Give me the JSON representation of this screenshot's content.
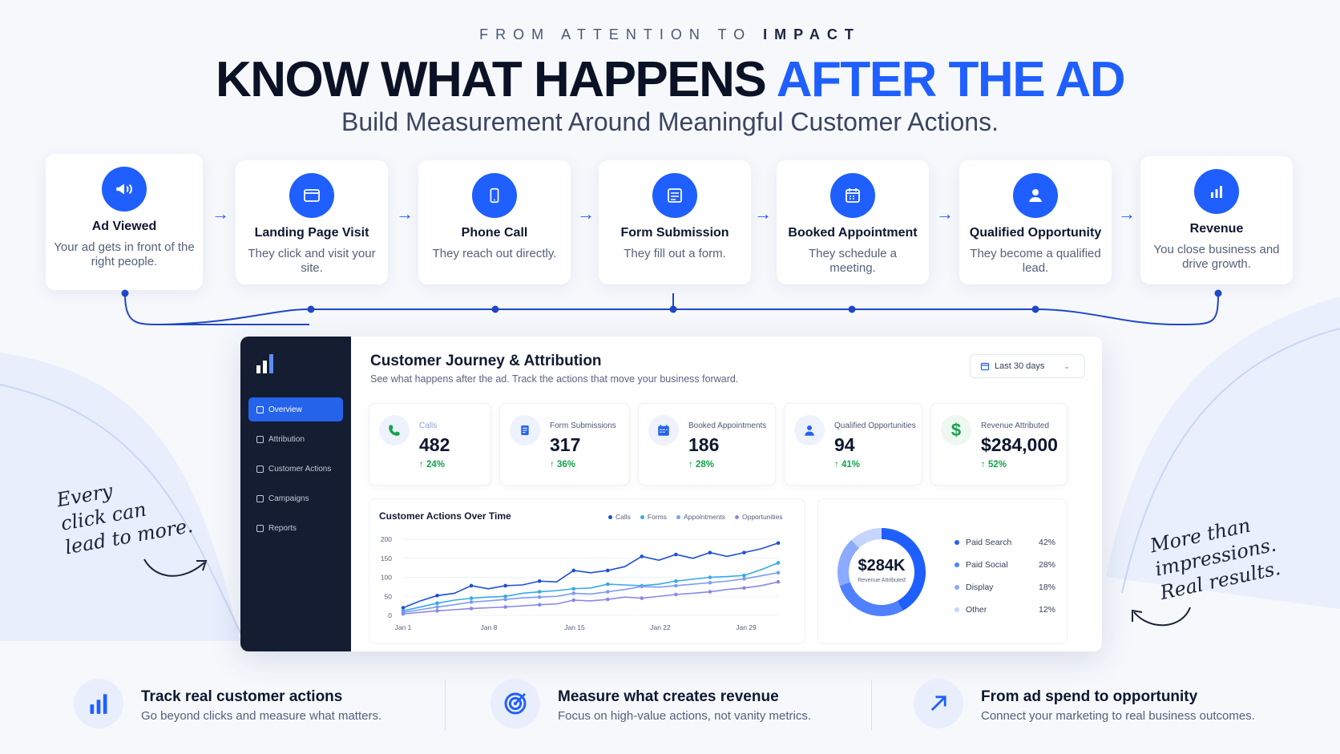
{
  "hero": {
    "kicker_pre": "FROM ATTENTION TO ",
    "kicker_bold": "IMPACT",
    "headline_main": "KNOW WHAT HAPPENS ",
    "headline_accent": "AFTER THE AD",
    "subhead": "Build Measurement Around Meaningful Customer Actions."
  },
  "colors": {
    "accent": "#1f5fff",
    "navy": "#141d31",
    "positive": "#10a44a"
  },
  "journey": [
    {
      "icon": "megaphone-icon",
      "title": "Ad Viewed",
      "desc": "Your ad gets in front of the right people."
    },
    {
      "icon": "browser-icon",
      "title": "Landing Page Visit",
      "desc": "They click and visit your site."
    },
    {
      "icon": "phone-icon",
      "title": "Phone Call",
      "desc": "They reach out directly."
    },
    {
      "icon": "form-icon",
      "title": "Form Submission",
      "desc": "They fill out a form."
    },
    {
      "icon": "calendar-icon",
      "title": "Booked Appointment",
      "desc": "They schedule a meeting."
    },
    {
      "icon": "user-icon",
      "title": "Qualified Opportunity",
      "desc": "They become a qualified lead."
    },
    {
      "icon": "bar-chart-icon",
      "title": "Revenue",
      "desc": "You close business and drive growth."
    }
  ],
  "dashboard": {
    "nav": [
      "Overview",
      "Attribution",
      "Customer Actions",
      "Campaigns",
      "Reports"
    ],
    "title": "Customer Journey & Attribution",
    "subtitle": "See what happens after the ad. Track the actions that move your business forward.",
    "date_range": "Last 30 days",
    "kpis": [
      {
        "label": "Calls",
        "value": "482",
        "delta": "24%",
        "icon": "phone-icon",
        "color": "#16a34a"
      },
      {
        "label": "Form Submissions",
        "value": "317",
        "delta": "36%",
        "icon": "form-icon",
        "color": "#2563eb"
      },
      {
        "label": "Booked Appointments",
        "value": "186",
        "delta": "28%",
        "icon": "calendar-icon",
        "color": "#2563eb"
      },
      {
        "label": "Qualified Opportunities",
        "value": "94",
        "delta": "41%",
        "icon": "user-icon",
        "color": "#2563eb"
      },
      {
        "label": "Revenue Attributed",
        "value": "$284,000",
        "delta": "52%",
        "icon": "dollar-icon",
        "color": "#16a34a"
      }
    ],
    "donut": {
      "center_value": "$284K",
      "center_label": "Revenue Attributed",
      "sources": [
        {
          "name": "Paid Search",
          "pct": "42%",
          "value": 42,
          "color": "#1f5fff"
        },
        {
          "name": "Paid Social",
          "pct": "28%",
          "value": 28,
          "color": "#4f80ff"
        },
        {
          "name": "Display",
          "pct": "18%",
          "value": 18,
          "color": "#8aabff"
        },
        {
          "name": "Other",
          "pct": "12%",
          "value": 12,
          "color": "#c6d5ff"
        }
      ]
    }
  },
  "chart_data": {
    "type": "line",
    "title": "Customer Actions Over Time",
    "x_ticks": [
      "Jan 1",
      "Jan 8",
      "Jan 15",
      "Jan 22",
      "Jan 29"
    ],
    "ylim": [
      0,
      200
    ],
    "y_ticks": [
      0,
      50,
      100,
      150,
      200
    ],
    "legend_position": "top-right",
    "series": [
      {
        "name": "Calls",
        "color": "#1d4ed8",
        "values": [
          20,
          38,
          52,
          58,
          78,
          70,
          78,
          80,
          90,
          88,
          118,
          112,
          118,
          128,
          155,
          145,
          160,
          150,
          165,
          155,
          165,
          175,
          190
        ]
      },
      {
        "name": "Forms",
        "color": "#38a8e8",
        "values": [
          12,
          22,
          32,
          40,
          45,
          48,
          50,
          58,
          62,
          65,
          70,
          72,
          82,
          80,
          78,
          82,
          90,
          95,
          100,
          102,
          105,
          120,
          138
        ]
      },
      {
        "name": "Appointments",
        "color": "#7c9cf0",
        "values": [
          8,
          15,
          22,
          28,
          35,
          38,
          42,
          46,
          48,
          50,
          58,
          56,
          62,
          68,
          76,
          74,
          78,
          82,
          86,
          90,
          96,
          104,
          112
        ]
      },
      {
        "name": "Opportunities",
        "color": "#8a88e6",
        "values": [
          4,
          8,
          12,
          15,
          18,
          20,
          22,
          25,
          28,
          30,
          40,
          38,
          42,
          48,
          45,
          50,
          55,
          58,
          62,
          68,
          72,
          78,
          88
        ]
      }
    ]
  },
  "notes": {
    "left": [
      "Every",
      "click can",
      "lead to more."
    ],
    "right": [
      "More than",
      "impressions.",
      "Real results."
    ]
  },
  "features": [
    {
      "icon": "bar-chart-icon",
      "title": "Track real customer actions",
      "desc": "Go beyond clicks and measure what matters."
    },
    {
      "icon": "target-icon",
      "title": "Measure what creates revenue",
      "desc": "Focus on high-value actions, not vanity metrics."
    },
    {
      "icon": "arrow-up-right-icon",
      "title": "From ad spend to opportunity",
      "desc": "Connect your marketing to real business outcomes."
    }
  ]
}
